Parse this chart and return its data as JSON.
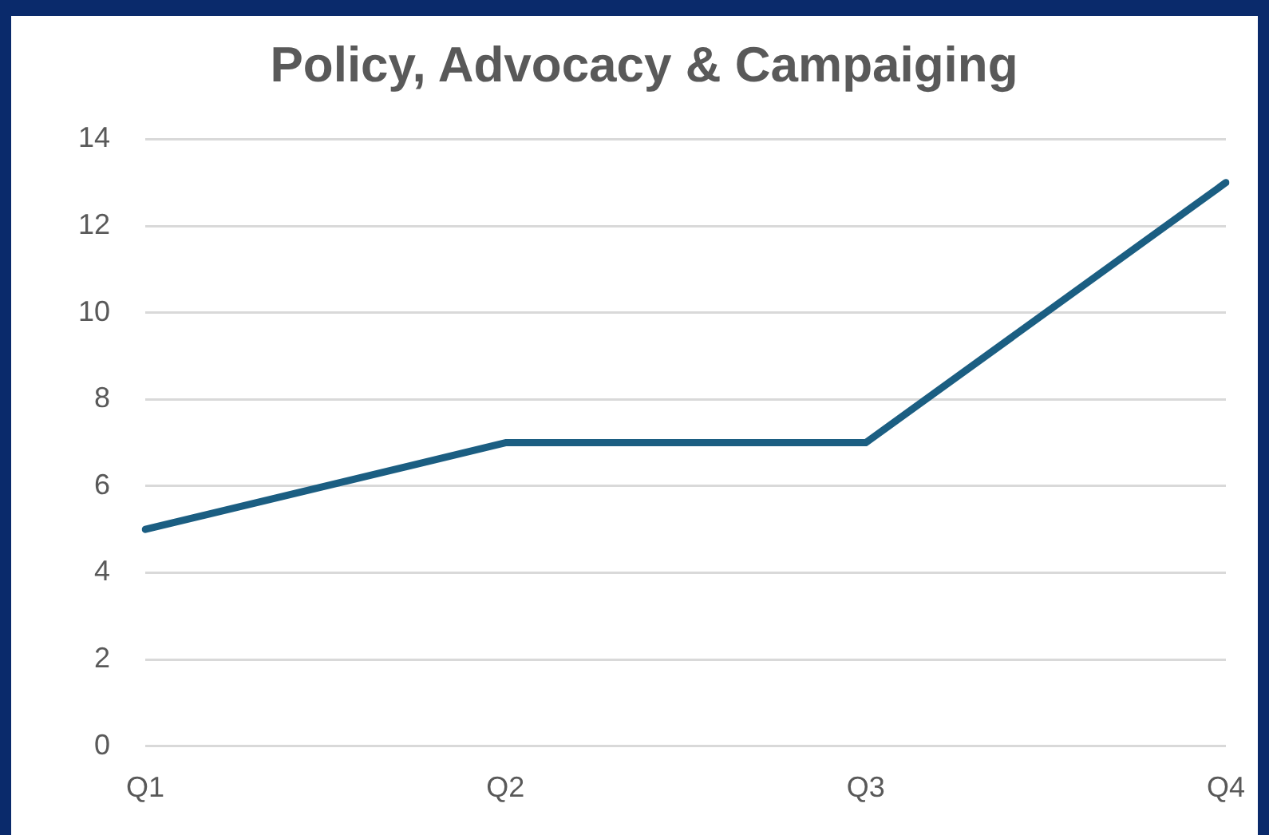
{
  "chart_data": {
    "type": "line",
    "title": "Policy, Advocacy & Campaiging",
    "categories": [
      "Q1",
      "Q2",
      "Q3",
      "Q4"
    ],
    "series": [
      {
        "color": "#1b5e82",
        "values": [
          5,
          7,
          7,
          13
        ]
      }
    ],
    "ylim": [
      0,
      14
    ],
    "yticks": [
      0,
      2,
      4,
      6,
      8,
      10,
      12,
      14
    ],
    "grid": "y",
    "legend": false,
    "marker": "none"
  }
}
